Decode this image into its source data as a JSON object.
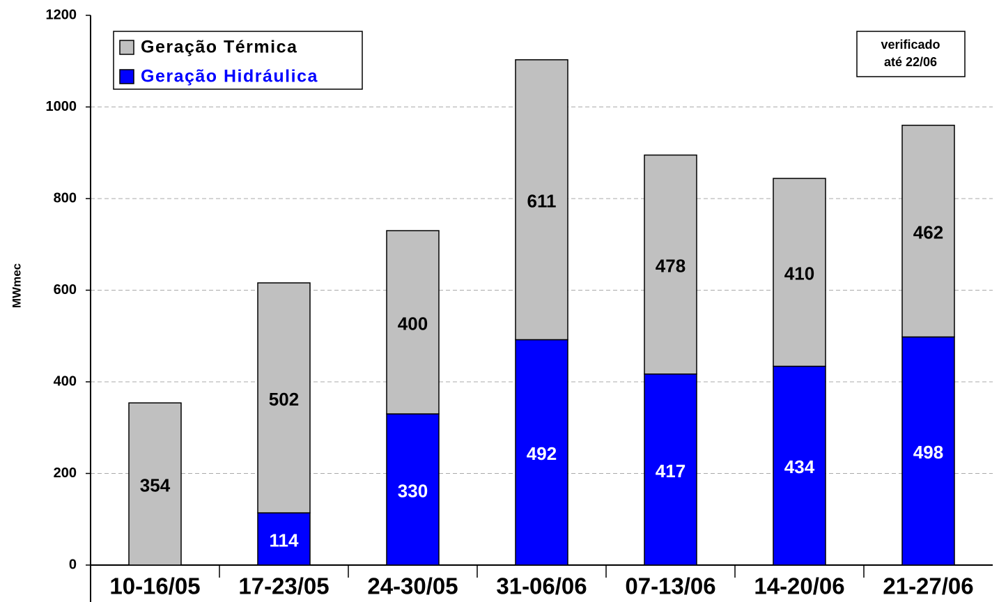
{
  "chart_data": {
    "type": "stacked_bar",
    "y_label": "MWmec",
    "categories": [
      "10-16/05",
      "17-23/05",
      "24-30/05",
      "31-06/06",
      "07-13/06",
      "14-20/06",
      "21-27/06"
    ],
    "series": [
      {
        "name": "Geração Hidráulica",
        "color": "#0000ff",
        "label_color": "#ffffff",
        "values": [
          null,
          114,
          330,
          492,
          417,
          434,
          498
        ]
      },
      {
        "name": "Geração Térmica",
        "color": "#c0c0c0",
        "label_color": "#000000",
        "values": [
          354,
          502,
          400,
          611,
          478,
          410,
          462
        ]
      }
    ],
    "ylim": [
      0,
      1200
    ],
    "yticks": [
      0,
      200,
      400,
      600,
      800,
      1000,
      1200
    ],
    "grid": true,
    "legend": "top-left",
    "annotation": [
      "verificado",
      "até 22/06"
    ]
  }
}
